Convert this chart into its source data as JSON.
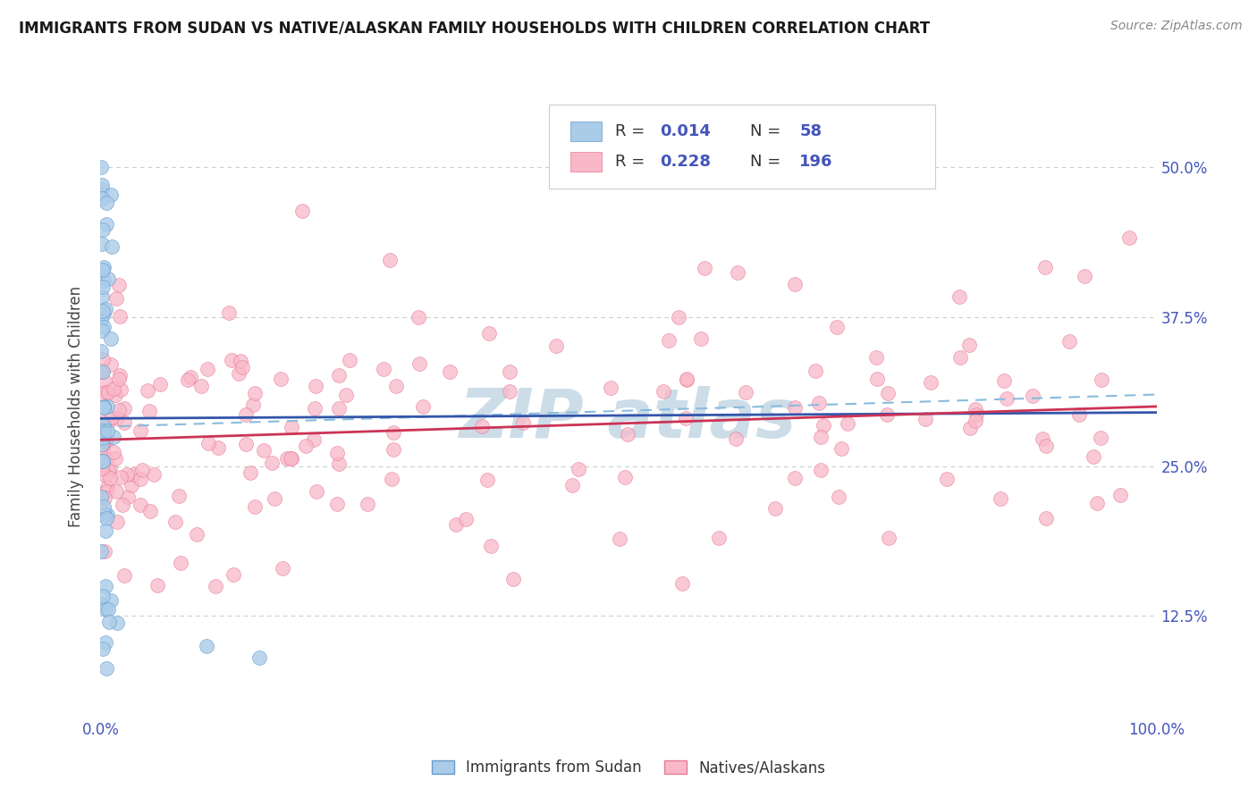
{
  "title": "IMMIGRANTS FROM SUDAN VS NATIVE/ALASKAN FAMILY HOUSEHOLDS WITH CHILDREN CORRELATION CHART",
  "source": "Source: ZipAtlas.com",
  "ylabel": "Family Households with Children",
  "yticks": [
    0.125,
    0.25,
    0.375,
    0.5
  ],
  "ytick_labels": [
    "12.5%",
    "25.0%",
    "37.5%",
    "50.0%"
  ],
  "xlim": [
    0.0,
    1.0
  ],
  "ylim": [
    0.04,
    0.56
  ],
  "blue_color": "#aacce8",
  "blue_edge": "#6699cc",
  "pink_color": "#f8b8c8",
  "pink_edge": "#e87898",
  "blue_line_color": "#3355aa",
  "pink_line_color": "#cc3355",
  "dashed_line_color": "#88bbdd",
  "background_color": "#ffffff",
  "watermark_color": "#ccdde8",
  "title_color": "#1a1a1a",
  "title_fontsize": 12,
  "axis_tick_color": "#4455bb",
  "grid_color": "#cccccc",
  "source_color": "#888888",
  "blue_line_y0": 0.29,
  "blue_line_y1": 0.295,
  "pink_line_y0": 0.272,
  "pink_line_y1": 0.3,
  "dash_line_y0": 0.283,
  "dash_line_y1": 0.31
}
